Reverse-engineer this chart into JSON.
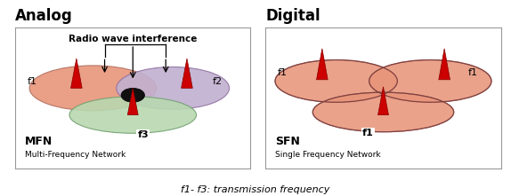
{
  "fig_width": 5.74,
  "fig_height": 2.21,
  "dpi": 100,
  "bg_color": "#ffffff",
  "title_analog": "Analog",
  "title_digital": "Digital",
  "label_mfn": "MFN",
  "label_mfn_full": "Multi-Frequency Network",
  "label_sfn": "SFN",
  "label_sfn_full": "Single Frequency Network",
  "label_interference": "Radio wave interference",
  "label_freq": "f1- f3: transmission frequency",
  "ellipse_salmon": "#E8957A",
  "ellipse_lavender": "#C0B0D0",
  "ellipse_green": "#B8D8B0",
  "tower_color_body": "#CC0000",
  "tower_color_dark": "#880000",
  "border_color": "#999999"
}
